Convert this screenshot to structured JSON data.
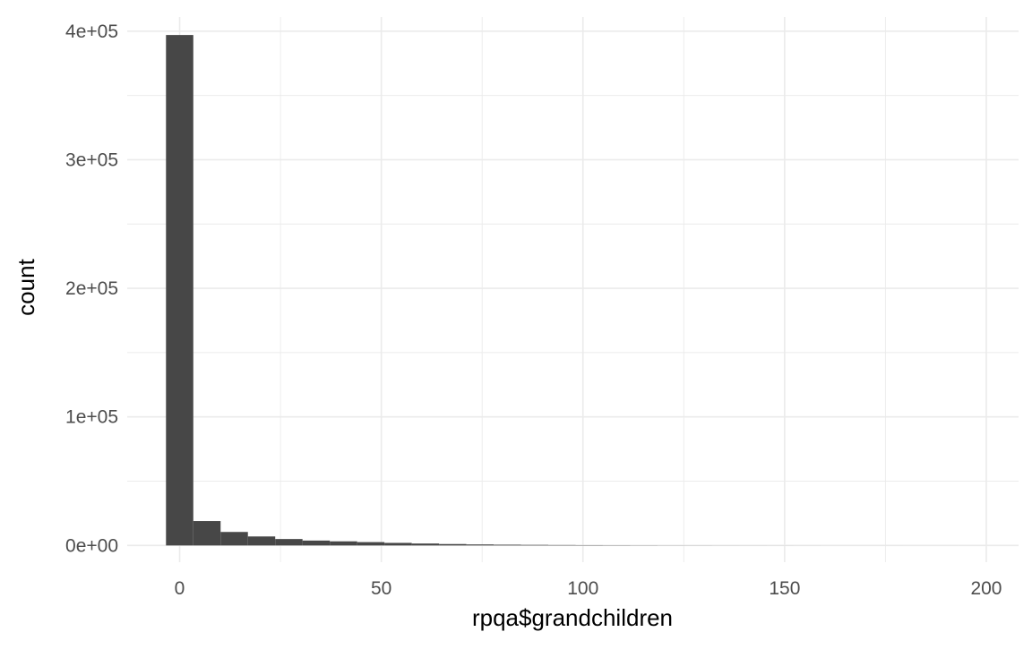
{
  "chart_data": {
    "type": "bar",
    "title": "",
    "xlabel": "rpqa$grandchildren",
    "ylabel": "count",
    "bin_width": 6.77,
    "bin_start": -3.385,
    "bins": 30,
    "counts": [
      397000,
      19000,
      10500,
      7000,
      5000,
      3800,
      3200,
      2600,
      2000,
      1500,
      1100,
      800,
      600,
      450,
      330,
      250,
      180,
      130,
      90,
      70,
      50,
      40,
      30,
      20,
      15,
      10,
      8,
      5,
      3,
      2
    ],
    "xlim": [
      -13,
      208
    ],
    "ylim": [
      -13000,
      411000
    ],
    "x_ticks": [
      0,
      50,
      100,
      150,
      200
    ],
    "x_tick_labels": [
      "0",
      "50",
      "100",
      "150",
      "200"
    ],
    "y_ticks": [
      0,
      100000,
      200000,
      300000,
      400000
    ],
    "y_tick_labels": [
      "0e+00",
      "1e+05",
      "2e+05",
      "3e+05",
      "4e+05"
    ],
    "grid": true,
    "bar_color": "#474747",
    "grid_color": "#ebebeb",
    "background": "#ffffff"
  }
}
